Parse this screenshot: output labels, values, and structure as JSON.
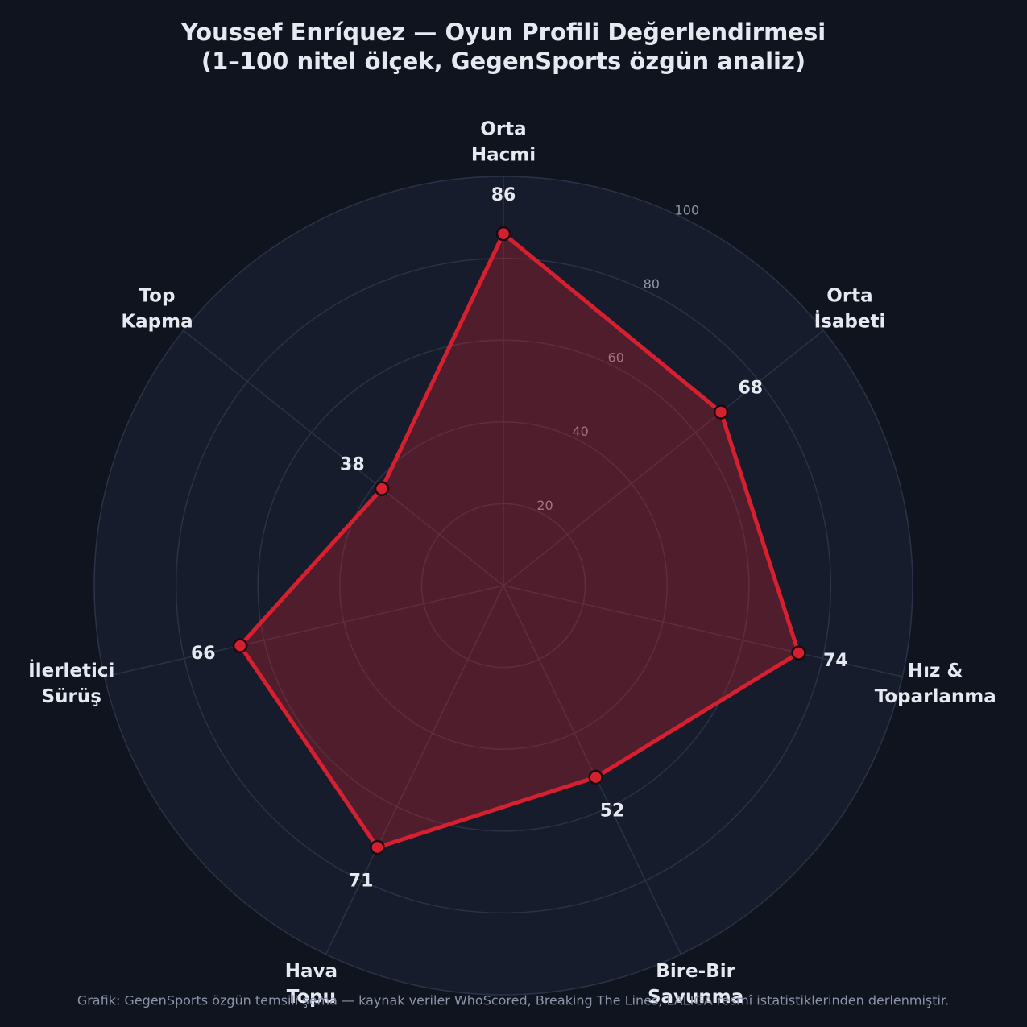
{
  "chart_data": {
    "type": "radar",
    "title": [
      "Youssef Enríquez — Oyun Profili Değerlendirmesi",
      "(1–100 nitel ölçek, GegenSports özgün analiz)"
    ],
    "categories": [
      [
        "Orta",
        "Hacmi"
      ],
      [
        "Orta",
        "İsabeti"
      ],
      [
        "Hız &",
        "Toparlanma"
      ],
      [
        "Bire-Bir",
        "Savunma"
      ],
      [
        "Hava",
        "Topu"
      ],
      [
        "İlerletici",
        "Sürüş"
      ],
      [
        "Top",
        "Kapma"
      ]
    ],
    "series": [
      {
        "color": "#d7202f",
        "values": [
          86,
          68,
          74,
          52,
          71,
          66,
          38
        ]
      }
    ],
    "rlim": [
      0,
      100
    ],
    "rticks": [
      20,
      40,
      60,
      80,
      100
    ],
    "grid": true,
    "footnote": "Grafik: GegenSports özgün temsili şema — kaynak veriler WhoScored, Breaking The Lines, LALIGA resmî istatistiklerinden derlenmiştir."
  }
}
